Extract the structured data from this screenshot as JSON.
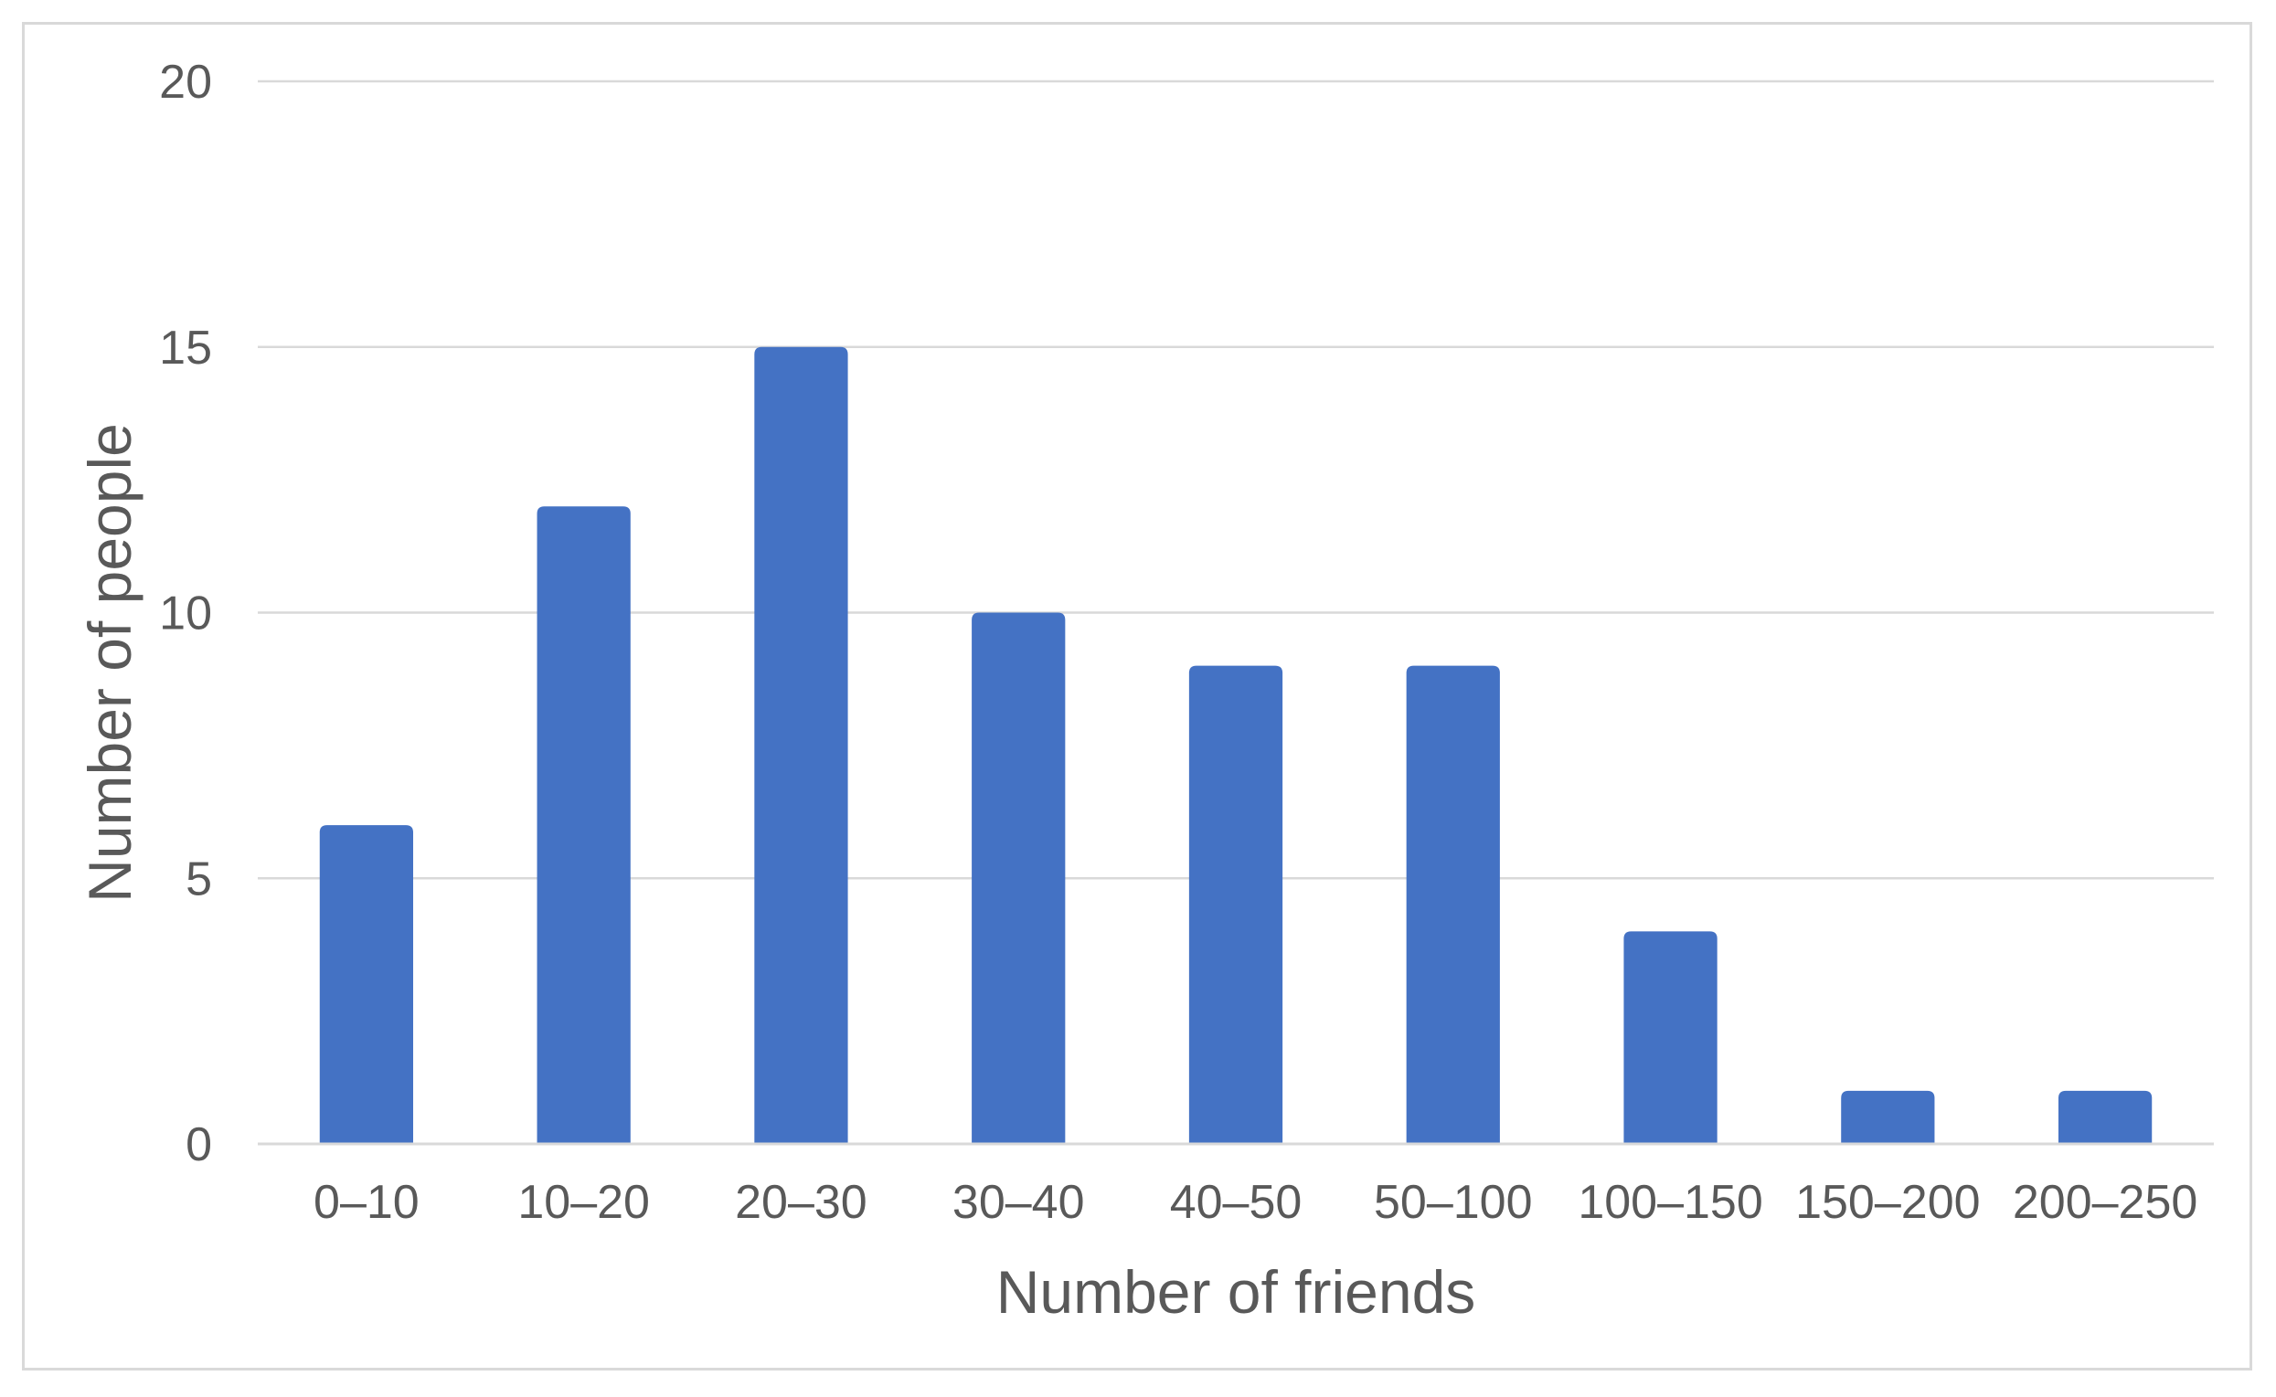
{
  "chart_data": {
    "type": "bar",
    "title": "",
    "xlabel": "Number of friends",
    "ylabel": "Number of people",
    "categories": [
      "0–10",
      "10–20",
      "20–30",
      "30–40",
      "40–50",
      "50–100",
      "100–150",
      "150–200",
      "200–250"
    ],
    "values": [
      6,
      12,
      15,
      10,
      9,
      9,
      4,
      1,
      1
    ],
    "ylim": [
      0,
      20
    ],
    "yticks": [
      "0",
      "5",
      "10",
      "15",
      "20"
    ],
    "grid": true,
    "legend": "none",
    "bar_color": "#4472C4"
  }
}
